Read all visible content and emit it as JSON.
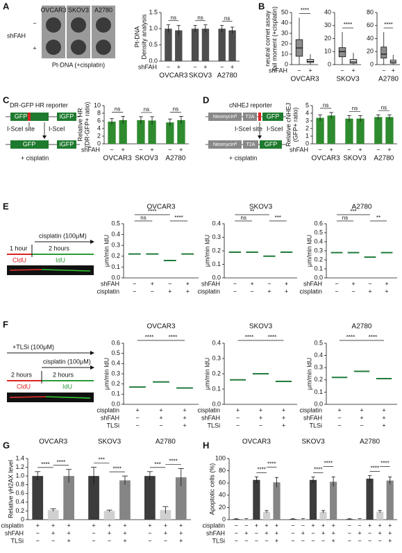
{
  "panel_labels": [
    "A",
    "B",
    "C",
    "D",
    "E",
    "F",
    "G",
    "H"
  ],
  "diagrams": {
    "A": {
      "minus": "−",
      "plus": "+",
      "row": "shFAH",
      "cells": [
        "OVCAR3",
        "SKOV3",
        "A2780"
      ],
      "caption": "Pt-DNA (+cisplatin)"
    },
    "C": {
      "title": "DR-GFP HR reporter",
      "gfp": "GFP",
      "igfp": "iGFP",
      "site": "I-SceI site",
      "enzyme": "I-SceI",
      "gfp2": "GFP",
      "igfp2": "iGFP",
      "caption": "+ cisplatin"
    },
    "D": {
      "title": "cNHEJ reporter",
      "neo": "Neomycinᴿ",
      "t2a": "T2A",
      "gfp": "GFP",
      "site": "I-SceI site",
      "enzyme": "I-SceI",
      "neo2": "Neomycinᴿ",
      "t2a2": "T2A",
      "gfp2": "GFP",
      "caption": "+ cisplatin"
    },
    "E": {
      "drug": "cisplatin (100μM)",
      "t1": "1 hour",
      "t2": "2 hours",
      "l1": "CldU",
      "l2": "IdU"
    },
    "F": {
      "drug1": "+TLSi (100μM)",
      "drug2": "cisplatin (100μM)",
      "t1": "2 hours",
      "t2": "2 hours",
      "l1": "CldU",
      "l2": "IdU"
    }
  },
  "chart_data": [
    {
      "type": "bar",
      "ylabel": [
        "Pt-DNA",
        "Density analysis"
      ],
      "ylim": [
        0,
        1.5
      ],
      "yticks": [
        {
          "value": 0,
          "label": "0.0"
        },
        0.5,
        {
          "value": 1,
          "label": "1.0"
        },
        1.5
      ],
      "values": [
        1.0,
        0.95,
        1.0,
        1.0,
        1.0,
        0.95
      ],
      "errors": [
        0.12,
        0.15,
        0.1,
        0.12,
        0.1,
        0.1
      ],
      "color": "#4d4d4d",
      "groups": [
        "OVCAR3",
        "SKOV3",
        "A2780"
      ],
      "conditions": [
        {
          "name": "shFAH",
          "values": [
            "−",
            "+",
            "−",
            "+",
            "−",
            "+"
          ]
        }
      ],
      "annotations": [
        "ns",
        "ns",
        "ns"
      ]
    },
    {
      "type": "box",
      "ylabel": [
        "neutral comet assay",
        "tail moment (+cisplatin)"
      ],
      "ylim": [
        0,
        50
      ],
      "yticks": [
        0,
        10,
        20,
        30,
        40,
        50
      ],
      "values": [
        [
          0,
          8,
          16,
          24,
          45
        ],
        [
          0,
          2,
          3,
          5,
          10
        ]
      ],
      "colors": [
        "#8c8c8c",
        "#d0d0d0"
      ],
      "groups": [
        "OVCAR3"
      ],
      "conditions": [
        {
          "name": "shFAH",
          "values": [
            "−",
            "+"
          ]
        }
      ],
      "annotations": [
        "****"
      ]
    },
    {
      "type": "box",
      "ylim": [
        0,
        40
      ],
      "yticks": [
        0,
        10,
        20,
        30,
        40
      ],
      "values": [
        [
          0,
          6,
          10,
          13,
          25
        ],
        [
          0,
          1,
          2,
          4,
          9
        ]
      ],
      "colors": [
        "#8c8c8c",
        "#d0d0d0"
      ],
      "groups": [
        "SKOV3"
      ],
      "conditions": [
        {
          "values": [
            "−",
            "+"
          ]
        }
      ],
      "annotations": [
        "****"
      ]
    },
    {
      "type": "box",
      "ylim": [
        0,
        80
      ],
      "yticks": [
        0,
        20,
        40,
        60,
        80
      ],
      "values": [
        [
          0,
          10,
          16,
          27,
          50
        ],
        [
          0,
          2,
          4,
          7,
          15
        ]
      ],
      "colors": [
        "#8c8c8c",
        "#d0d0d0"
      ],
      "groups": [
        "A2780"
      ],
      "conditions": [
        {
          "values": [
            "−",
            "+"
          ]
        }
      ],
      "annotations": [
        "****"
      ]
    },
    {
      "type": "bar",
      "ylabel": [
        "Relative HR",
        "(DR-GFP+ ratio)"
      ],
      "ylim": [
        0,
        10
      ],
      "yticks": [
        0,
        2,
        4,
        6,
        8,
        10
      ],
      "values": [
        5.8,
        6.2,
        6.2,
        6.1,
        5.6,
        6.2
      ],
      "errors": [
        0.8,
        1.0,
        0.9,
        1.0,
        0.9,
        1.0
      ],
      "color": "#2e8b2e",
      "groups": [
        "OVCAR3",
        "SKOV3",
        "A2780"
      ],
      "conditions": [
        {
          "name": "shFAH",
          "values": [
            "−",
            "+",
            "−",
            "+",
            "−",
            "+"
          ]
        }
      ],
      "annotations": [
        "ns",
        "ns",
        "ns"
      ]
    },
    {
      "type": "bar",
      "ylabel": [
        "Relative cNHEJ",
        "(GFP+ ratio)"
      ],
      "ylim": [
        0,
        5
      ],
      "yticks": [
        0,
        1,
        2,
        3,
        4,
        5
      ],
      "values": [
        3.4,
        3.7,
        3.3,
        3.3,
        3.5,
        3.5
      ],
      "errors": [
        0.4,
        0.4,
        0.4,
        0.4,
        0.3,
        0.3
      ],
      "color": "#2e8b2e",
      "groups": [
        "OVCAR3",
        "SKOV3",
        "A2780"
      ],
      "conditions": [
        {
          "name": "shFAH",
          "values": [
            "−",
            "+",
            "−",
            "+",
            "−",
            "+"
          ]
        }
      ],
      "annotations": [
        "ns",
        "ns",
        "ns"
      ]
    },
    {
      "type": "strip",
      "ylabel": [
        "μm/min IdU"
      ],
      "ylim": [
        0,
        0.5
      ],
      "yticks": [
        {
          "value": 0,
          "label": "0.0"
        },
        0.1,
        0.2,
        0.3,
        0.4,
        0.5
      ],
      "values": [
        0.22,
        0.22,
        0.16,
        0.22
      ],
      "color": "#1f7a3a",
      "groups": [
        "OVCAR3"
      ],
      "conditions": [
        {
          "name": "shFAH",
          "values": [
            "−",
            "+",
            "−",
            "+"
          ]
        },
        {
          "name": "cisplatin",
          "values": [
            "−",
            "−",
            "+",
            "+"
          ]
        }
      ],
      "annotations": [
        "ns",
        "****",
        "****"
      ]
    },
    {
      "type": "strip",
      "ylabel": [
        "μm/min IdU"
      ],
      "ylim": [
        0,
        0.4
      ],
      "yticks": [
        {
          "value": 0,
          "label": "0.0"
        },
        0.1,
        0.2,
        0.3,
        0.4
      ],
      "values": [
        0.19,
        0.19,
        0.16,
        0.19
      ],
      "color": "#1f7a3a",
      "groups": [
        "SKOV3"
      ],
      "conditions": [
        {
          "name": "shFAH",
          "values": [
            "−",
            "+",
            "−",
            "+"
          ]
        },
        {
          "name": "cisplatin",
          "values": [
            "−",
            "−",
            "+",
            "+"
          ]
        }
      ],
      "annotations": [
        "ns",
        "**",
        "***"
      ]
    },
    {
      "type": "strip",
      "ylabel": [
        "μm/min IdU"
      ],
      "ylim": [
        0,
        0.6
      ],
      "yticks": [
        {
          "value": 0,
          "label": "0.0"
        },
        0.1,
        0.2,
        0.3,
        0.4,
        0.5,
        0.6
      ],
      "values": [
        0.28,
        0.28,
        0.23,
        0.28
      ],
      "color": "#1f7a3a",
      "groups": [
        "A2780"
      ],
      "conditions": [
        {
          "name": "shFAH",
          "values": [
            "−",
            "+",
            "−",
            "+"
          ]
        },
        {
          "name": "cisplatin",
          "values": [
            "−",
            "−",
            "+",
            "+"
          ]
        }
      ],
      "annotations": [
        "ns",
        "***",
        "**"
      ]
    },
    {
      "type": "strip",
      "ylabel": [
        "μm/min IdU"
      ],
      "ylim": [
        0,
        0.6
      ],
      "yticks": [
        {
          "value": 0,
          "label": "0.0"
        },
        0.1,
        0.2,
        0.3,
        0.4,
        0.5,
        0.6
      ],
      "values": [
        0.17,
        0.22,
        0.16
      ],
      "color": "#1f7a3a",
      "groups": [
        "OVCAR3"
      ],
      "conditions": [
        {
          "name": "cisplatin",
          "values": [
            "+",
            "+",
            "+"
          ]
        },
        {
          "name": "shFAH",
          "values": [
            "−",
            "+",
            "+"
          ]
        },
        {
          "name": "TLSi",
          "values": [
            "−",
            "−",
            "+"
          ]
        }
      ],
      "annotations": [
        "****",
        "****"
      ]
    },
    {
      "type": "strip",
      "ylabel": [
        "μm/min IdU"
      ],
      "ylim": [
        0,
        0.4
      ],
      "yticks": [
        {
          "value": 0,
          "label": "0.0"
        },
        0.1,
        0.2,
        0.3,
        0.4
      ],
      "values": [
        0.16,
        0.2,
        0.15
      ],
      "color": "#1f7a3a",
      "groups": [
        "SKOV3"
      ],
      "conditions": [
        {
          "name": "cisplatin",
          "values": [
            "+",
            "+",
            "+"
          ]
        },
        {
          "name": "shFAH",
          "values": [
            "−",
            "+",
            "+"
          ]
        },
        {
          "name": "TLSi",
          "values": [
            "−",
            "−",
            "+"
          ]
        }
      ],
      "annotations": [
        "****",
        "****"
      ]
    },
    {
      "type": "strip",
      "ylabel": [
        "μm/min IdU"
      ],
      "ylim": [
        0,
        0.5
      ],
      "yticks": [
        {
          "value": 0,
          "label": "0.0"
        },
        0.1,
        0.2,
        0.3,
        0.4,
        0.5
      ],
      "values": [
        0.22,
        0.27,
        0.21
      ],
      "color": "#1f7a3a",
      "groups": [
        "A2780"
      ],
      "conditions": [
        {
          "name": "cisplatin",
          "values": [
            "+",
            "+",
            "+"
          ]
        },
        {
          "name": "shFAH",
          "values": [
            "−",
            "+",
            "+"
          ]
        },
        {
          "name": "TLSi",
          "values": [
            "−",
            "−",
            "+"
          ]
        }
      ],
      "annotations": [
        "****",
        "****"
      ]
    },
    {
      "type": "bar",
      "ylabel": [
        "Relative γH2AX level"
      ],
      "ylim": [
        0,
        1.4
      ],
      "yticks": [
        0,
        0.2,
        0.4,
        0.6,
        0.8,
        {
          "value": 1,
          "label": "1.0"
        },
        1.2,
        1.4
      ],
      "values": [
        1.0,
        0.22,
        1.0,
        1.0,
        0.2,
        0.9,
        1.0,
        0.22,
        0.97
      ],
      "errors": [
        0.1,
        0.03,
        0.15,
        0.2,
        0.02,
        0.1,
        0.1,
        0.08,
        0.2
      ],
      "colors": [
        "#3c3c3c",
        "#d0d0d0",
        "#858585",
        "#3c3c3c",
        "#d0d0d0",
        "#858585",
        "#3c3c3c",
        "#d0d0d0",
        "#858585"
      ],
      "groups": [
        "OVCAR3",
        "SKOV3",
        "A2780"
      ],
      "conditions": [
        {
          "name": "cisplatin",
          "values": [
            "+",
            "+",
            "+",
            "+",
            "+",
            "+",
            "+",
            "+",
            "+"
          ]
        },
        {
          "name": "shFAH",
          "values": [
            "−",
            "+",
            "+",
            "−",
            "+",
            "+",
            "−",
            "+",
            "+"
          ]
        },
        {
          "name": "TLSi",
          "values": [
            "−",
            "−",
            "+",
            "−",
            "−",
            "+",
            "−",
            "−",
            "+"
          ]
        }
      ],
      "annotations": [
        "****",
        "****",
        "***",
        "****",
        "***",
        "****"
      ]
    },
    {
      "type": "bar",
      "ylabel": [
        "Apoptotic cells (%)"
      ],
      "ylim": [
        0,
        100
      ],
      "yticks": [
        0,
        20,
        40,
        60,
        80,
        100
      ],
      "values": [
        1,
        1,
        65,
        13,
        61,
        1,
        1,
        65,
        13,
        62,
        1,
        1,
        67,
        13,
        64
      ],
      "errors": [
        0.5,
        0.5,
        5,
        2,
        8,
        0.5,
        0.5,
        5,
        2,
        8,
        0.5,
        0.5,
        5,
        2,
        6
      ],
      "colors": [
        "#3c3c3c",
        "#d0d0d0",
        "#3c3c3c",
        "#d0d0d0",
        "#858585",
        "#3c3c3c",
        "#d0d0d0",
        "#3c3c3c",
        "#d0d0d0",
        "#858585",
        "#3c3c3c",
        "#d0d0d0",
        "#3c3c3c",
        "#d0d0d0",
        "#858585"
      ],
      "groups": [
        "OVCAR3",
        "SKOV3",
        "A2780"
      ],
      "conditions": [
        {
          "name": "cisplatin",
          "values": [
            "−",
            "−",
            "+",
            "+",
            "+",
            "−",
            "−",
            "+",
            "+",
            "+",
            "−",
            "−",
            "+",
            "+",
            "+"
          ]
        },
        {
          "name": "shFAH",
          "values": [
            "−",
            "+",
            "−",
            "+",
            "+",
            "−",
            "+",
            "−",
            "+",
            "+",
            "−",
            "+",
            "−",
            "+",
            "+"
          ]
        },
        {
          "name": "TLSi",
          "values": [
            "−",
            "−",
            "−",
            "−",
            "+",
            "−",
            "−",
            "−",
            "−",
            "+",
            "−",
            "−",
            "−",
            "−",
            "+"
          ]
        }
      ],
      "annotations": [
        "****",
        "****",
        "****",
        "****",
        "****",
        "****"
      ]
    }
  ]
}
